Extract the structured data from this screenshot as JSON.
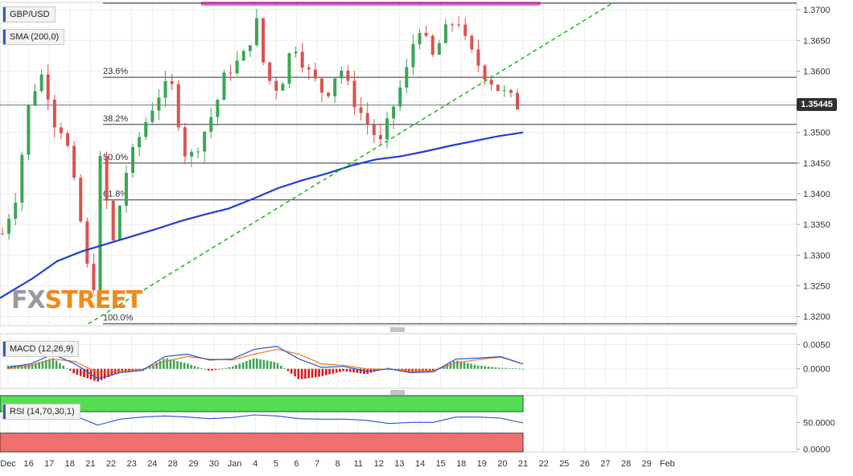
{
  "symbol": "GBP/USD",
  "indicators": {
    "sma_label": "SMA (200,0)",
    "macd_label": "MACD (12,26,9)",
    "rsi_label": "RSI (14,70,30,1)"
  },
  "last_price": "1.35445",
  "brand": {
    "fx": "FX",
    "street": "STREET"
  },
  "colors": {
    "up": "#3aa655",
    "down": "#d9534f",
    "sma": "#1f3fd1",
    "trendline": "#22bb22",
    "resistance_box": "#e040c8",
    "macd_line": "#2255cc",
    "signal_line": "#ee7722",
    "rsi_line": "#2255cc",
    "overbought": "#55dd55",
    "oversold": "#f07070"
  },
  "chart_data": [
    {
      "type": "candlestick",
      "title": "",
      "y_ticks": [
        "1.3700",
        "1.3650",
        "1.3600",
        "1.3550",
        "1.3500",
        "1.3450",
        "1.3400",
        "1.3350",
        "1.3300",
        "1.3250",
        "1.3200"
      ],
      "x_ticks": [
        "Dec",
        "16",
        "17",
        "18",
        "21",
        "22",
        "23",
        "24",
        "28",
        "29",
        "30",
        "Jan",
        "4",
        "5",
        "6",
        "7",
        "8",
        "11",
        "12",
        "13",
        "14",
        "15",
        "18",
        "19",
        "20",
        "21",
        "22",
        "25",
        "26",
        "27",
        "28",
        "29",
        "Feb"
      ],
      "ylim": [
        1.3185,
        1.3712
      ],
      "fib_levels": [
        {
          "label": "23.6%",
          "value": 1.359
        },
        {
          "label": "38.2%",
          "value": 1.3513
        },
        {
          "label": "50.0%",
          "value": 1.345
        },
        {
          "label": "61.8%",
          "value": 1.339
        },
        {
          "label": "100.0%",
          "value": 1.3188
        }
      ],
      "current_price": 1.35445,
      "sma_200": [
        [
          -0.5,
          1.323
        ],
        [
          1,
          1.3262
        ],
        [
          2,
          1.329
        ],
        [
          3,
          1.3306
        ],
        [
          4,
          1.3318
        ],
        [
          5,
          1.333
        ],
        [
          6,
          1.3342
        ],
        [
          7,
          1.3355
        ],
        [
          8,
          1.3366
        ],
        [
          9,
          1.3376
        ],
        [
          10,
          1.3392
        ],
        [
          11,
          1.3409
        ],
        [
          12,
          1.3422
        ],
        [
          13,
          1.3433
        ],
        [
          14,
          1.3446
        ],
        [
          15,
          1.3456
        ],
        [
          16,
          1.3461
        ],
        [
          17,
          1.3469
        ],
        [
          18,
          1.3478
        ],
        [
          19,
          1.3486
        ],
        [
          20,
          1.3494
        ],
        [
          21,
          1.35
        ]
      ],
      "trendline": [
        [
          3.9,
          1.3188
        ],
        [
          29.4,
          1.3712
        ]
      ],
      "resistance_zone": {
        "x_from": 9.4,
        "x_to": 25.8,
        "y_from": 1.3705,
        "y_to": 1.3712
      }
    },
    {
      "type": "bar",
      "title": "MACD (12,26,9)",
      "y_ticks": [
        "0.0050",
        "0.0000"
      ],
      "ylim": [
        -0.004,
        0.0072
      ],
      "macd_line": [
        [
          0,
          0.0003
        ],
        [
          1,
          0.001
        ],
        [
          2,
          0.003
        ],
        [
          3,
          0.001
        ],
        [
          4,
          -0.002
        ],
        [
          5,
          -0.0008
        ],
        [
          6,
          -0.0003
        ],
        [
          7,
          0.0025
        ],
        [
          8,
          0.003
        ],
        [
          9,
          0.0018
        ],
        [
          10,
          0.002
        ],
        [
          11,
          0.004
        ],
        [
          12,
          0.0046
        ],
        [
          13,
          0.002
        ],
        [
          14,
          0.0003
        ],
        [
          15,
          0.0005
        ],
        [
          16,
          -0.0005
        ],
        [
          17,
          0.0
        ],
        [
          18,
          -0.0008
        ],
        [
          19,
          -0.0006
        ],
        [
          20,
          0.002
        ],
        [
          21,
          0.0022
        ],
        [
          22,
          0.0025
        ],
        [
          23,
          0.001
        ]
      ],
      "signal_line": [
        [
          0,
          0.0
        ],
        [
          1,
          0.0006
        ],
        [
          2,
          0.002
        ],
        [
          3,
          0.0015
        ],
        [
          4,
          -0.0008
        ],
        [
          5,
          -0.0005
        ],
        [
          6,
          -0.0001
        ],
        [
          7,
          0.0015
        ],
        [
          8,
          0.0025
        ],
        [
          9,
          0.002
        ],
        [
          10,
          0.0018
        ],
        [
          11,
          0.003
        ],
        [
          12,
          0.004
        ],
        [
          13,
          0.003
        ],
        [
          14,
          0.001
        ],
        [
          15,
          0.0007
        ],
        [
          16,
          0.0
        ],
        [
          17,
          -0.0001
        ],
        [
          18,
          -0.0004
        ],
        [
          19,
          -0.0004
        ],
        [
          20,
          0.0012
        ],
        [
          21,
          0.0019
        ],
        [
          22,
          0.0024
        ],
        [
          23,
          0.001
        ]
      ]
    },
    {
      "type": "line",
      "title": "RSI (14,70,30,1)",
      "y_ticks": [
        "50.0000",
        "0.0000"
      ],
      "ylim": [
        -5,
        100
      ],
      "overbought": 70,
      "oversold": 30,
      "rsi": [
        [
          0,
          66
        ],
        [
          1,
          58
        ],
        [
          2,
          60
        ],
        [
          3,
          62
        ],
        [
          4,
          45
        ],
        [
          5,
          56
        ],
        [
          6,
          60
        ],
        [
          7,
          62
        ],
        [
          8,
          60
        ],
        [
          9,
          57
        ],
        [
          10,
          59
        ],
        [
          11,
          64
        ],
        [
          12,
          62
        ],
        [
          13,
          57
        ],
        [
          14,
          56
        ],
        [
          15,
          56
        ],
        [
          16,
          54
        ],
        [
          17,
          48
        ],
        [
          18,
          50
        ],
        [
          19,
          50
        ],
        [
          20,
          60
        ],
        [
          21,
          60
        ],
        [
          22,
          58
        ],
        [
          23,
          49
        ]
      ]
    }
  ]
}
